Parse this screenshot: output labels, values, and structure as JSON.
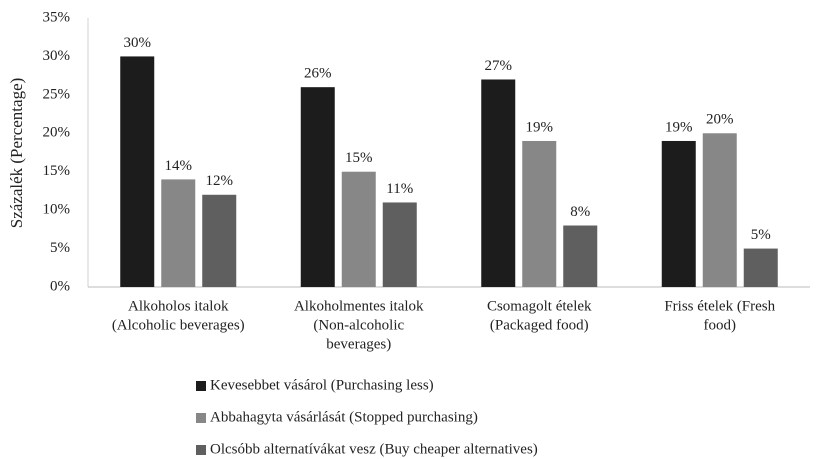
{
  "chart_data": {
    "type": "bar",
    "y_label": "Százalék (Percentage)",
    "categories": [
      [
        "Alkoholos italok",
        "(Alcoholic beverages)"
      ],
      [
        "Alkoholmentes italok",
        "(Non-alcoholic",
        "beverages)"
      ],
      [
        "Csomagolt ételek",
        "(Packaged food)"
      ],
      [
        "Friss ételek (Fresh",
        "food)"
      ]
    ],
    "series": [
      {
        "name": "Kevesebbet vásárol (Purchasing less)",
        "color": "#1c1c1c",
        "values": [
          30,
          26,
          27,
          19
        ],
        "value_labels": [
          "30%",
          "26%",
          "27%",
          "19%"
        ]
      },
      {
        "name": "Abbahagyta vásárlását (Stopped purchasing)",
        "color": "#878787",
        "values": [
          14,
          15,
          19,
          20
        ],
        "value_labels": [
          "14%",
          "15%",
          "19%",
          "20%"
        ]
      },
      {
        "name": "Olcsóbb alternatívákat vesz (Buy cheaper alternatives)",
        "color": "#5f5f5f",
        "values": [
          12,
          11,
          8,
          5
        ],
        "value_labels": [
          "12%",
          "11%",
          "8%",
          "5%"
        ]
      }
    ],
    "ylim": [
      0,
      35
    ],
    "yticks": [
      {
        "value": 0,
        "label": "0%"
      },
      {
        "value": 5,
        "label": "5%"
      },
      {
        "value": 10,
        "label": "10%"
      },
      {
        "value": 15,
        "label": "15%"
      },
      {
        "value": 20,
        "label": "20%"
      },
      {
        "value": 25,
        "label": "25%"
      },
      {
        "value": 30,
        "label": "30%"
      },
      {
        "value": 35,
        "label": "35%"
      }
    ],
    "grid": false,
    "legend": "bottom"
  }
}
